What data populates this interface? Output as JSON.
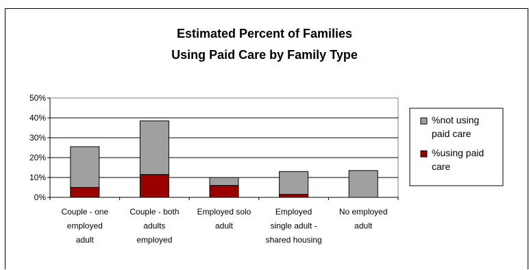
{
  "chart_data": {
    "type": "bar",
    "stacked": true,
    "title_lines": [
      "Estimated Percent of Families",
      "Using Paid Care by Family Type"
    ],
    "categories": [
      [
        "Couple - one",
        "employed",
        "adult"
      ],
      [
        "Couple - both",
        "adults",
        "employed"
      ],
      [
        "Employed solo",
        "adult"
      ],
      [
        "Employed",
        "single adult -",
        "shared housing"
      ],
      [
        "No employed",
        "adult"
      ]
    ],
    "series": [
      {
        "name": "%using paid care",
        "values": [
          5,
          11.5,
          6,
          1.5,
          0
        ],
        "color": "#990000"
      },
      {
        "name": "%not using paid care",
        "values": [
          20.5,
          27,
          4,
          11.5,
          13.5
        ],
        "color": "#a0a0a0"
      }
    ],
    "yticks": [
      "0%",
      "10%",
      "20%",
      "30%",
      "40%",
      "50%"
    ],
    "ylim": [
      0,
      50
    ],
    "grid": true,
    "legend_position": "right",
    "legend": [
      {
        "lines": [
          "%not using",
          "paid care"
        ],
        "color": "#a0a0a0"
      },
      {
        "lines": [
          "%using paid",
          "care"
        ],
        "color": "#990000"
      }
    ]
  }
}
